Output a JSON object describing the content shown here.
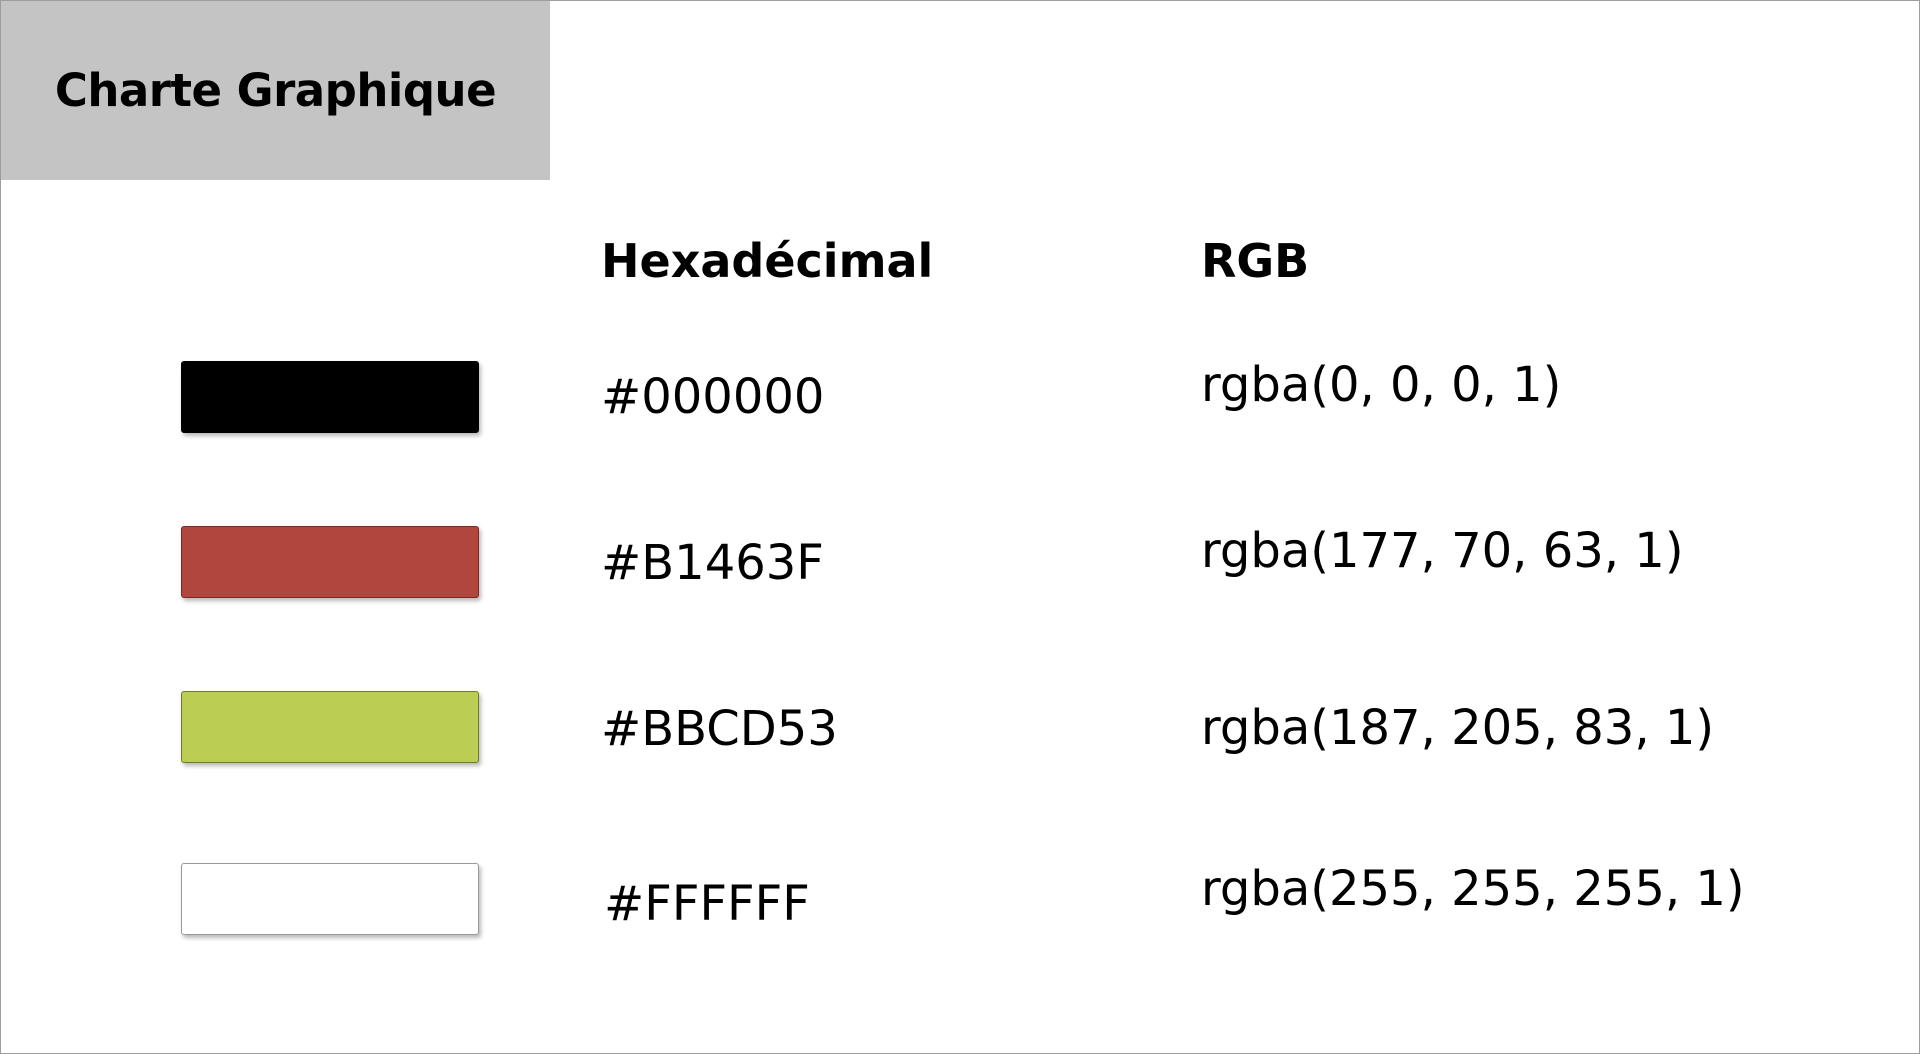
{
  "title": "Charte Graphique",
  "headers": {
    "hex": "Hexadécimal",
    "rgb": "RGB"
  },
  "colors": [
    {
      "hex": "#000000",
      "rgb": "rgba(0, 0, 0, 1)",
      "swatch": "#000000",
      "border": "#000000"
    },
    {
      "hex": "#B1463F",
      "rgb": "rgba(177, 70, 63, 1)",
      "swatch": "#B1463F",
      "border": "#7a2a25"
    },
    {
      "hex": "#BBCD53",
      "rgb": "rgba(187, 205, 83, 1)",
      "swatch": "#BBCD53",
      "border": "#6f7a2e"
    },
    {
      "hex": "#FFFFFF",
      "rgb": "rgba(255, 255, 255, 1)",
      "swatch": "#FFFFFF",
      "border": "#9a9a9a"
    }
  ]
}
